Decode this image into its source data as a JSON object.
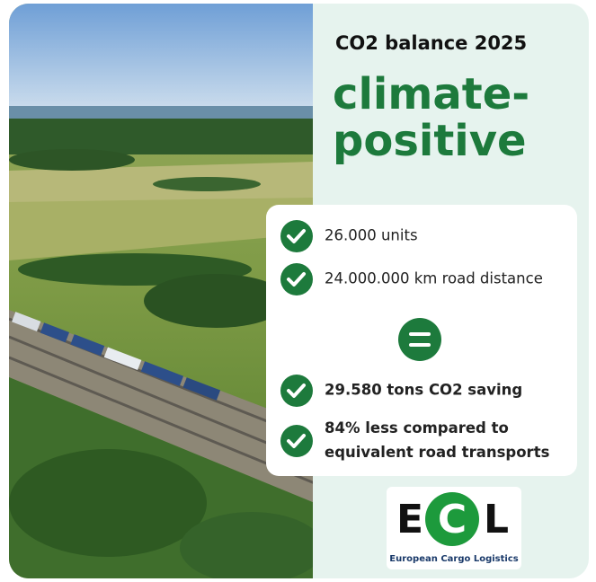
{
  "header": {
    "subtitle": "CO2 balance 2025",
    "title_lines": [
      "climate-",
      "positive"
    ]
  },
  "items": [
    {
      "lines": [
        "26.000 units"
      ],
      "bold": false
    },
    {
      "lines": [
        "24.000.000 km road distance"
      ],
      "bold": false
    },
    {
      "lines": [
        "29.580 tons CO2 saving"
      ],
      "bold": true
    },
    {
      "lines": [
        "84% less compared to",
        "equivalent road transports"
      ],
      "bold": true
    }
  ],
  "logo": {
    "letters": [
      "E",
      "C",
      "L"
    ],
    "name": "European Cargo Logistics"
  }
}
